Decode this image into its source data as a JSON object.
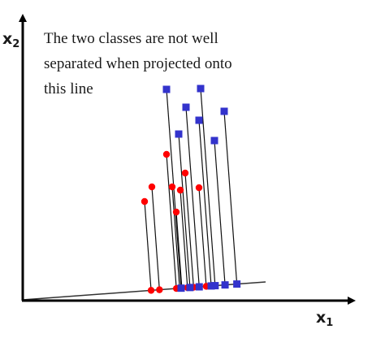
{
  "caption": {
    "lines": [
      "The two classes are not well",
      "separated when projected onto",
      "this line"
    ]
  },
  "axes": {
    "x_label_main": "x",
    "x_label_sub": "1",
    "y_label_main": "x",
    "y_label_sub": "2"
  },
  "colors": {
    "class_a": "#ff0000",
    "class_b": "#3333cc",
    "axis": "#000000",
    "projection": "#000000"
  },
  "classes": [
    {
      "marker": "circle",
      "color": "#ff0000",
      "points": [
        [
          178,
          248
        ],
        [
          187,
          230
        ],
        [
          205,
          190
        ],
        [
          212,
          230
        ],
        [
          217,
          261
        ],
        [
          222,
          234
        ],
        [
          228,
          213
        ],
        [
          245,
          231
        ]
      ]
    },
    {
      "marker": "square",
      "color": "#3333cc",
      "points": [
        [
          205,
          110
        ],
        [
          247,
          109
        ],
        [
          229,
          132
        ],
        [
          245,
          148
        ],
        [
          276,
          137
        ],
        [
          220,
          165
        ],
        [
          264,
          173
        ]
      ]
    }
  ]
}
